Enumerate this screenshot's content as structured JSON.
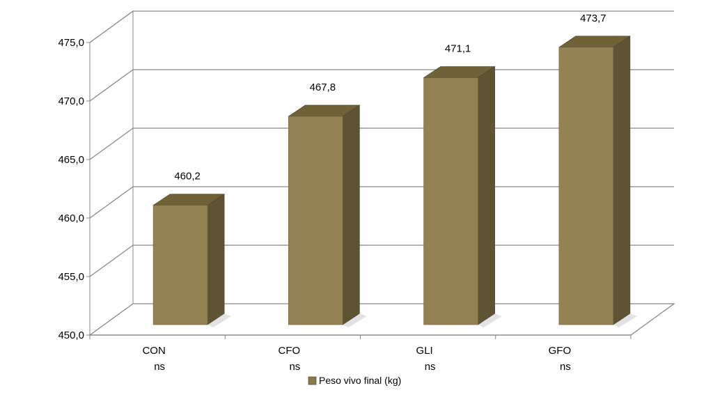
{
  "chart_data": {
    "type": "bar",
    "categories": [
      "CON",
      "CFO",
      "GLI",
      "GFO"
    ],
    "category_notes": [
      "ns",
      "ns",
      "ns",
      "ns"
    ],
    "series": [
      {
        "name": "Peso vivo final (kg)",
        "values": [
          460.2,
          467.8,
          471.1,
          473.7
        ]
      }
    ],
    "data_labels": [
      "460,2",
      "467,8",
      "471,1",
      "473,7"
    ],
    "y_ticks": [
      "450,0",
      "455,0",
      "460,0",
      "465,0",
      "470,0",
      "475,0"
    ],
    "ylim": [
      450,
      475
    ],
    "grid": true,
    "legend_position": "bottom",
    "style": "3d-column",
    "colors": {
      "bar_front": "#938253",
      "bar_side": "#5e5333",
      "bar_top": "#6f6238",
      "grid": "#888888",
      "legend_swatch": "#8a7a48"
    }
  }
}
